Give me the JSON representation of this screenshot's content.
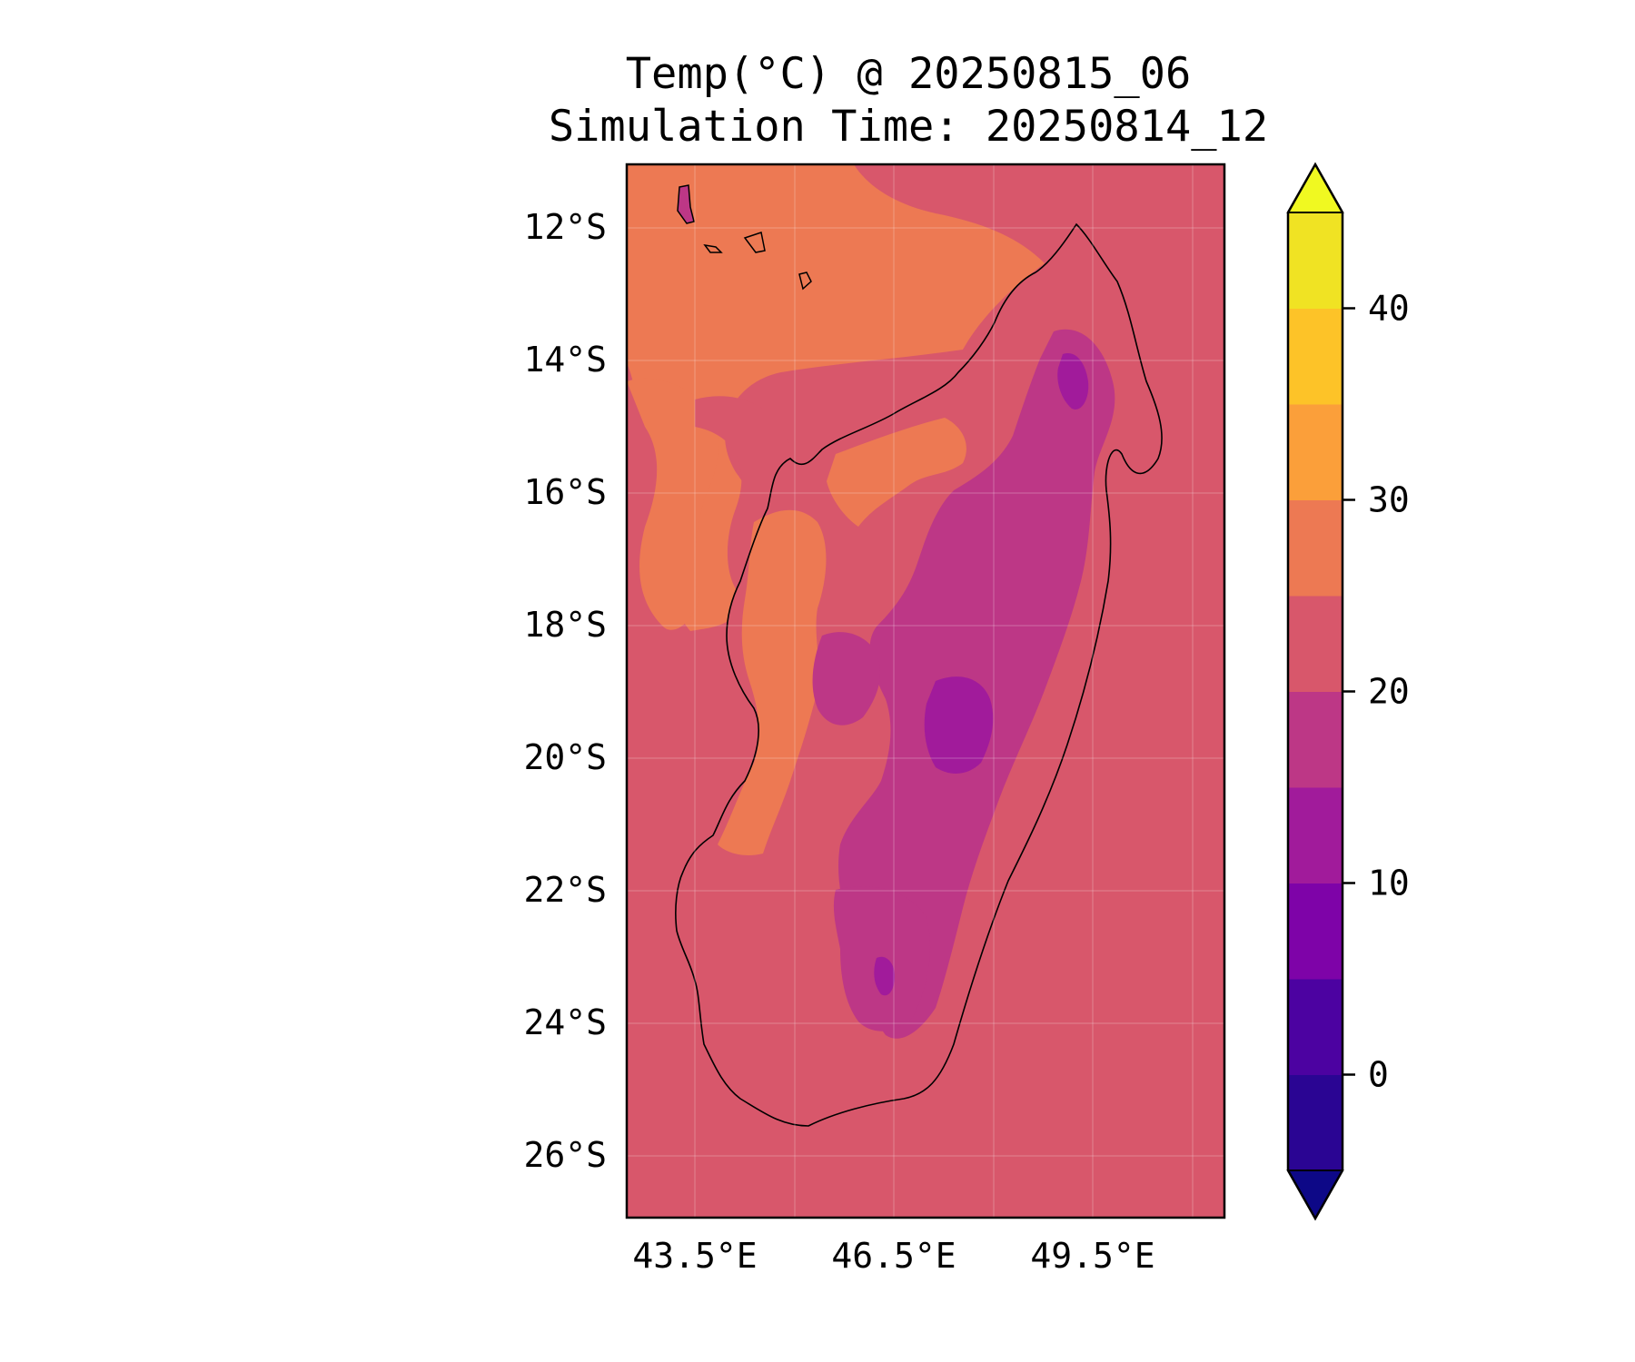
{
  "title_line1": "Temp(°C) @ 20250815_06",
  "title_line2": "Simulation Time: 20250814_12",
  "map": {
    "lon_range": [
      42.4,
      51.4
    ],
    "lat_range": [
      -27,
      -11.1
    ],
    "lon_ticks": [
      "43.5°E",
      "46.5°E",
      "49.5°E"
    ],
    "lat_ticks": [
      "12°S",
      "14°S",
      "16°S",
      "18°S",
      "20°S",
      "22°S",
      "24°S",
      "26°S"
    ],
    "gridlines": true,
    "ocean_temperature_band": "20–25"
  },
  "colorbar": {
    "ticks": [
      "0",
      "10",
      "20",
      "30",
      "40"
    ],
    "extend": "both",
    "levels": [
      -5,
      0,
      5,
      10,
      15,
      20,
      25,
      30,
      35,
      40,
      45
    ],
    "colors": {
      "under": "#0d0887",
      "b1": "#2a0593",
      "b2": "#4c02a1",
      "b3": "#7e03a8",
      "b4": "#a11b9b",
      "b5": "#bd3786",
      "b6": "#d8576b",
      "b7": "#ed7953",
      "b8": "#fb9f3a",
      "b9": "#fdc328",
      "b10": "#f0e323",
      "over": "#f0f921"
    }
  }
}
